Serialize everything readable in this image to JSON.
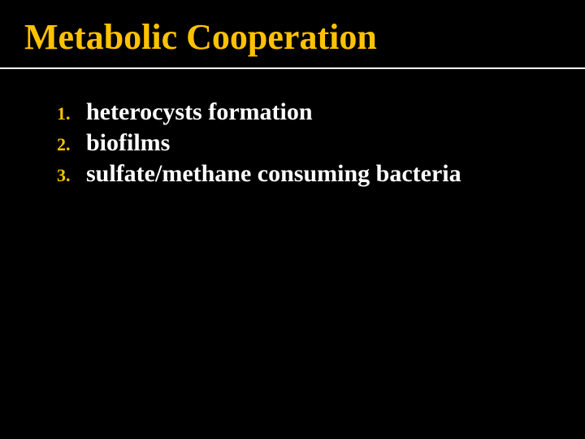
{
  "slide": {
    "title": "Metabolic Cooperation",
    "items": [
      {
        "number": "1.",
        "text": "heterocysts formation"
      },
      {
        "number": "2.",
        "text": "biofilms"
      },
      {
        "number": "3.",
        "text": "sulfate/methane consuming bacteria"
      }
    ],
    "colors": {
      "background": "#000000",
      "title": "#fec200",
      "number": "#fec200",
      "text": "#ffffff",
      "rule": "#ffffff"
    },
    "typography": {
      "title_fontsize": 44,
      "number_fontsize": 22,
      "text_fontsize": 30,
      "font_family": "Georgia, Times New Roman, serif",
      "font_weight": "bold"
    }
  }
}
